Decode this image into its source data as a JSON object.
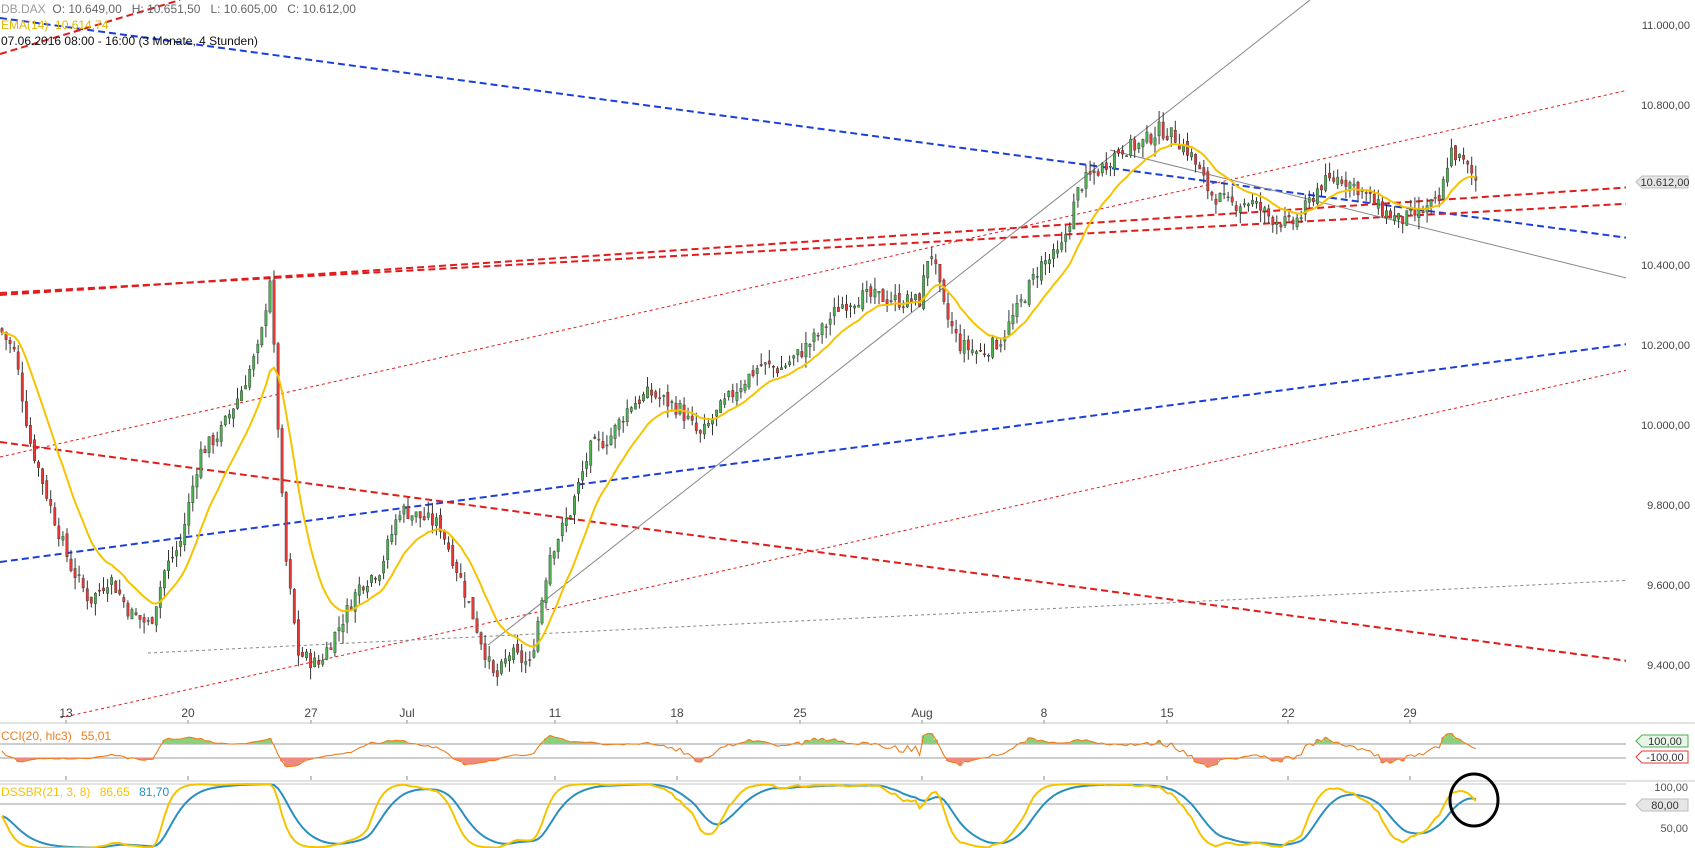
{
  "header": {
    "symbol": "DB.DAX",
    "ohlc": "O: 10.649,00   H: 10.651,50   L: 10.605,00   C: 10.612,00",
    "ema_label": "EMA(14)",
    "ema_value": "10.614,74",
    "period": "07.06.2016 08:00 - 16:00 (3 Monate, 4 Stunden)"
  },
  "colors": {
    "up_candle": "#4caf50",
    "down_candle": "#e53935",
    "ema": "#f5c400",
    "blue_trend": "#1a3fdc",
    "red_trend": "#e21b1b",
    "cci": "#ef7d1a",
    "dss": "#f5c400",
    "dss_signal": "#2a8fbf"
  },
  "chart_data": [
    {
      "type": "candlestick",
      "title": "DB.DAX",
      "x_tick_labels": [
        "13",
        "20",
        "27",
        "Jul",
        "11",
        "18",
        "25",
        "Aug",
        "8",
        "15",
        "22",
        "29"
      ],
      "y_tick_labels": [
        "11.000,00",
        "10.800,00",
        "10.400,00",
        "10.200,00",
        "10.000,00",
        "9.800,00",
        "9.600,00",
        "9.400,00"
      ],
      "ylim": [
        9330,
        11050
      ],
      "last_price_label": "10.612,00",
      "close_series_approx": [
        {
          "x": "13",
          "close": 9620
        },
        {
          "x": "20",
          "close": 9880
        },
        {
          "x": "24 Jun high",
          "close": 10370
        },
        {
          "x": "27",
          "close": 9420
        },
        {
          "x": "Jul",
          "close": 9790
        },
        {
          "x": "6 Jul low",
          "close": 9350
        },
        {
          "x": "11",
          "close": 9760
        },
        {
          "x": "18",
          "close": 10050
        },
        {
          "x": "25",
          "close": 10200
        },
        {
          "x": "Aug",
          "close": 10330
        },
        {
          "x": "3 Aug low",
          "close": 10150
        },
        {
          "x": "8",
          "close": 10420
        },
        {
          "x": "15",
          "close": 10750
        },
        {
          "x": "22",
          "close": 10520
        },
        {
          "x": "29",
          "close": 10530
        },
        {
          "x": "last",
          "close": 10612
        }
      ],
      "overlay": {
        "name": "EMA(14)",
        "last": 10614.74
      }
    },
    {
      "type": "line",
      "title": "CCI(20, hlc3)",
      "value": "55,01",
      "levels": [
        "100,00",
        "-100,00"
      ]
    },
    {
      "type": "line",
      "title": "DSSBR(21, 3, 8)",
      "value1": "86,65",
      "value2": "81,70",
      "levels": [
        "100,00",
        "80,00",
        "50,00"
      ]
    }
  ]
}
